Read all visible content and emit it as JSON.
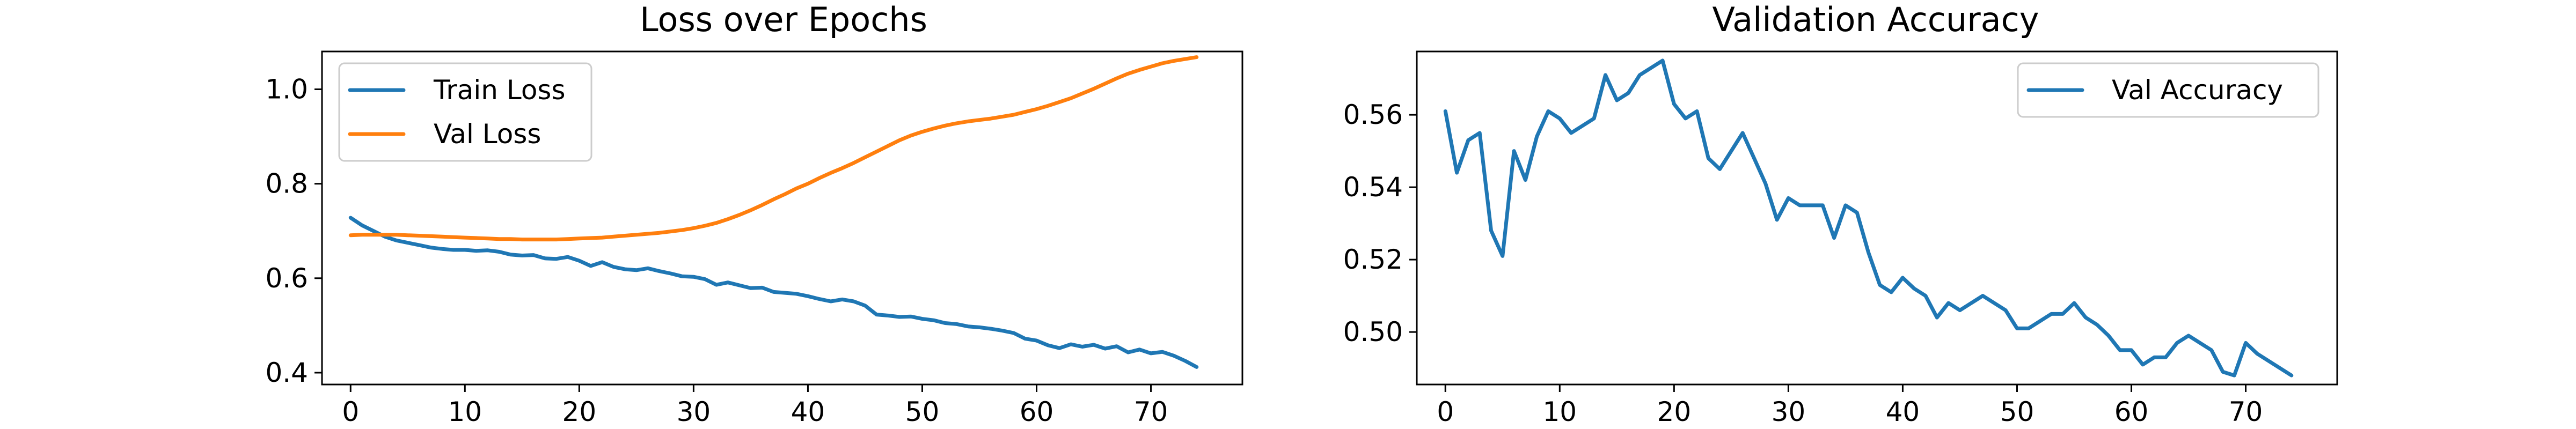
{
  "colors": {
    "blue": "#1f77b4",
    "orange": "#ff7f0e"
  },
  "chart_data": [
    {
      "type": "line",
      "title": "Loss over Epochs",
      "xlim": [
        -2.5,
        78
      ],
      "ylim": [
        0.375,
        1.08
      ],
      "xticks": [
        0,
        10,
        20,
        30,
        40,
        50,
        60,
        70
      ],
      "yticks": [
        0.4,
        0.6,
        0.8,
        1.0
      ],
      "ytick_labels": [
        "0.4",
        "0.6",
        "0.8",
        "1.0"
      ],
      "legend_position": "upper left",
      "grid": false,
      "series": [
        {
          "name": "Train Loss",
          "color": "#1f77b4",
          "x": [
            0,
            1,
            2,
            3,
            4,
            5,
            6,
            7,
            8,
            9,
            10,
            11,
            12,
            13,
            14,
            15,
            16,
            17,
            18,
            19,
            20,
            21,
            22,
            23,
            24,
            25,
            26,
            27,
            28,
            29,
            30,
            31,
            32,
            33,
            34,
            35,
            36,
            37,
            38,
            39,
            40,
            41,
            42,
            43,
            44,
            45,
            46,
            47,
            48,
            49,
            50,
            51,
            52,
            53,
            54,
            55,
            56,
            57,
            58,
            59,
            60,
            61,
            62,
            63,
            64,
            65,
            66,
            67,
            68,
            69,
            70,
            71,
            72,
            73,
            74
          ],
          "y": [
            0.728,
            0.712,
            0.7,
            0.688,
            0.68,
            0.675,
            0.67,
            0.665,
            0.662,
            0.66,
            0.66,
            0.658,
            0.659,
            0.656,
            0.65,
            0.648,
            0.649,
            0.642,
            0.641,
            0.645,
            0.637,
            0.626,
            0.634,
            0.624,
            0.619,
            0.617,
            0.621,
            0.615,
            0.61,
            0.604,
            0.603,
            0.598,
            0.586,
            0.591,
            0.585,
            0.579,
            0.58,
            0.571,
            0.569,
            0.567,
            0.562,
            0.556,
            0.551,
            0.555,
            0.551,
            0.542,
            0.523,
            0.521,
            0.518,
            0.519,
            0.514,
            0.511,
            0.505,
            0.503,
            0.498,
            0.496,
            0.493,
            0.489,
            0.484,
            0.472,
            0.468,
            0.458,
            0.452,
            0.46,
            0.455,
            0.459,
            0.451,
            0.456,
            0.443,
            0.449,
            0.441,
            0.444,
            0.436,
            0.425,
            0.412
          ]
        },
        {
          "name": "Val Loss",
          "color": "#ff7f0e",
          "x": [
            0,
            1,
            2,
            3,
            4,
            5,
            6,
            7,
            8,
            9,
            10,
            11,
            12,
            13,
            14,
            15,
            16,
            17,
            18,
            19,
            20,
            21,
            22,
            23,
            24,
            25,
            26,
            27,
            28,
            29,
            30,
            31,
            32,
            33,
            34,
            35,
            36,
            37,
            38,
            39,
            40,
            41,
            42,
            43,
            44,
            45,
            46,
            47,
            48,
            49,
            50,
            51,
            52,
            53,
            54,
            55,
            56,
            57,
            58,
            59,
            60,
            61,
            62,
            63,
            64,
            65,
            66,
            67,
            68,
            69,
            70,
            71,
            72,
            73,
            74
          ],
          "y": [
            0.691,
            0.692,
            0.692,
            0.692,
            0.692,
            0.691,
            0.69,
            0.689,
            0.688,
            0.687,
            0.686,
            0.685,
            0.684,
            0.683,
            0.683,
            0.682,
            0.682,
            0.682,
            0.682,
            0.683,
            0.684,
            0.685,
            0.686,
            0.688,
            0.69,
            0.692,
            0.694,
            0.696,
            0.699,
            0.702,
            0.706,
            0.711,
            0.717,
            0.725,
            0.734,
            0.744,
            0.755,
            0.767,
            0.778,
            0.79,
            0.8,
            0.812,
            0.823,
            0.833,
            0.844,
            0.856,
            0.868,
            0.88,
            0.892,
            0.902,
            0.91,
            0.917,
            0.923,
            0.928,
            0.932,
            0.935,
            0.938,
            0.942,
            0.946,
            0.952,
            0.958,
            0.965,
            0.973,
            0.981,
            0.991,
            1.001,
            1.012,
            1.023,
            1.033,
            1.041,
            1.048,
            1.055,
            1.06,
            1.064,
            1.068
          ]
        }
      ]
    },
    {
      "type": "line",
      "title": "Validation Accuracy",
      "xlim": [
        -2.5,
        78
      ],
      "ylim": [
        0.4855,
        0.5775
      ],
      "xticks": [
        0,
        10,
        20,
        30,
        40,
        50,
        60,
        70
      ],
      "yticks": [
        0.5,
        0.52,
        0.54,
        0.56
      ],
      "ytick_labels": [
        "0.50",
        "0.52",
        "0.54",
        "0.56"
      ],
      "legend_position": "upper right",
      "grid": false,
      "series": [
        {
          "name": "Val Accuracy",
          "color": "#1f77b4",
          "x": [
            0,
            1,
            2,
            3,
            4,
            5,
            6,
            7,
            8,
            9,
            10,
            11,
            12,
            13,
            14,
            15,
            16,
            17,
            18,
            19,
            20,
            21,
            22,
            23,
            24,
            25,
            26,
            27,
            28,
            29,
            30,
            31,
            32,
            33,
            34,
            35,
            36,
            37,
            38,
            39,
            40,
            41,
            42,
            43,
            44,
            45,
            46,
            47,
            48,
            49,
            50,
            51,
            52,
            53,
            54,
            55,
            56,
            57,
            58,
            59,
            60,
            61,
            62,
            63,
            64,
            65,
            66,
            67,
            68,
            69,
            70,
            71,
            72,
            73,
            74
          ],
          "y": [
            0.561,
            0.544,
            0.553,
            0.555,
            0.528,
            0.521,
            0.55,
            0.542,
            0.554,
            0.561,
            0.559,
            0.555,
            0.557,
            0.559,
            0.571,
            0.564,
            0.566,
            0.571,
            0.573,
            0.575,
            0.563,
            0.559,
            0.561,
            0.548,
            0.545,
            0.55,
            0.555,
            0.548,
            0.541,
            0.531,
            0.537,
            0.535,
            0.535,
            0.535,
            0.526,
            0.535,
            0.533,
            0.522,
            0.513,
            0.511,
            0.515,
            0.512,
            0.51,
            0.504,
            0.508,
            0.506,
            0.508,
            0.51,
            0.508,
            0.506,
            0.501,
            0.501,
            0.503,
            0.505,
            0.505,
            0.508,
            0.504,
            0.502,
            0.499,
            0.495,
            0.495,
            0.491,
            0.493,
            0.493,
            0.497,
            0.499,
            0.497,
            0.495,
            0.489,
            0.488,
            0.497,
            0.494,
            0.492,
            0.49,
            0.488
          ]
        }
      ]
    }
  ]
}
